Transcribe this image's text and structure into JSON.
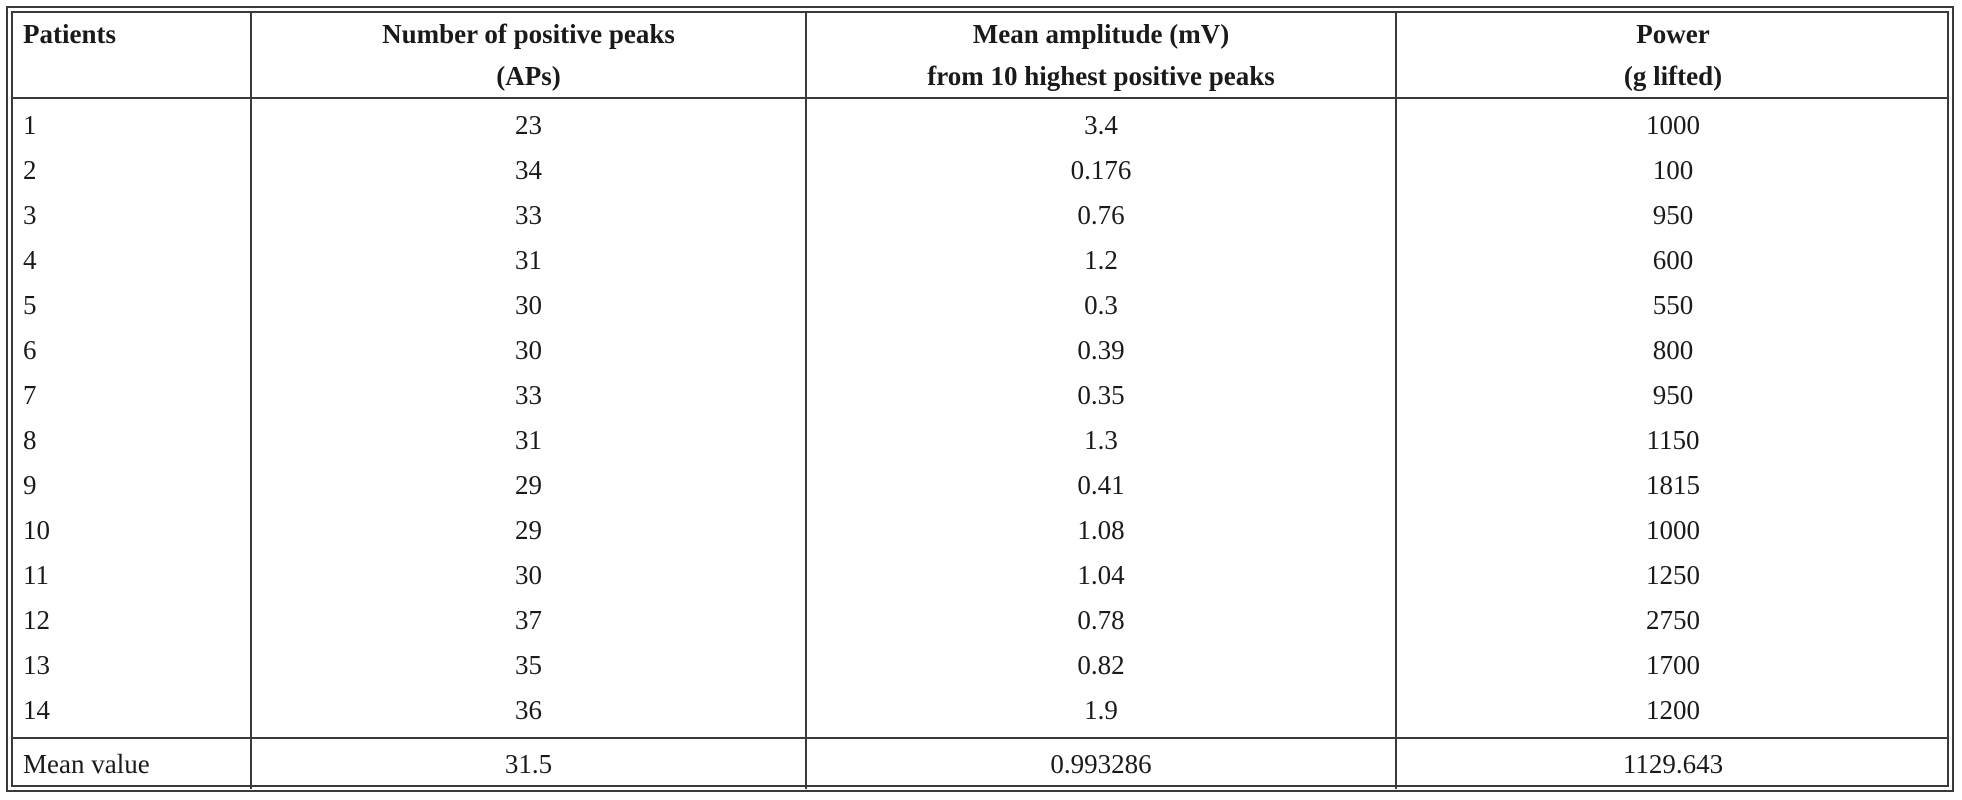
{
  "table": {
    "headers": [
      {
        "lines": [
          "Patients"
        ]
      },
      {
        "lines": [
          "Number of positive peaks",
          "(APs)"
        ]
      },
      {
        "lines": [
          "Mean amplitude (mV)",
          "from 10 highest positive peaks"
        ]
      },
      {
        "lines": [
          "Power",
          "(g lifted)"
        ]
      }
    ],
    "rows": [
      [
        "1",
        "23",
        "3.4",
        "1000"
      ],
      [
        "2",
        "34",
        "0.176",
        "100"
      ],
      [
        "3",
        "33",
        "0.76",
        "950"
      ],
      [
        "4",
        "31",
        "1.2",
        "600"
      ],
      [
        "5",
        "30",
        "0.3",
        "550"
      ],
      [
        "6",
        "30",
        "0.39",
        "800"
      ],
      [
        "7",
        "33",
        "0.35",
        "950"
      ],
      [
        "8",
        "31",
        "1.3",
        "1150"
      ],
      [
        "9",
        "29",
        "0.41",
        "1815"
      ],
      [
        "10",
        "29",
        "1.08",
        "1000"
      ],
      [
        "11",
        "30",
        "1.04",
        "1250"
      ],
      [
        "12",
        "37",
        "0.78",
        "2750"
      ],
      [
        "13",
        "35",
        "0.82",
        "1700"
      ],
      [
        "14",
        "36",
        "1.9",
        "1200"
      ]
    ],
    "footer": [
      "Mean value",
      "31.5",
      "0.993286",
      "1129.643"
    ]
  }
}
